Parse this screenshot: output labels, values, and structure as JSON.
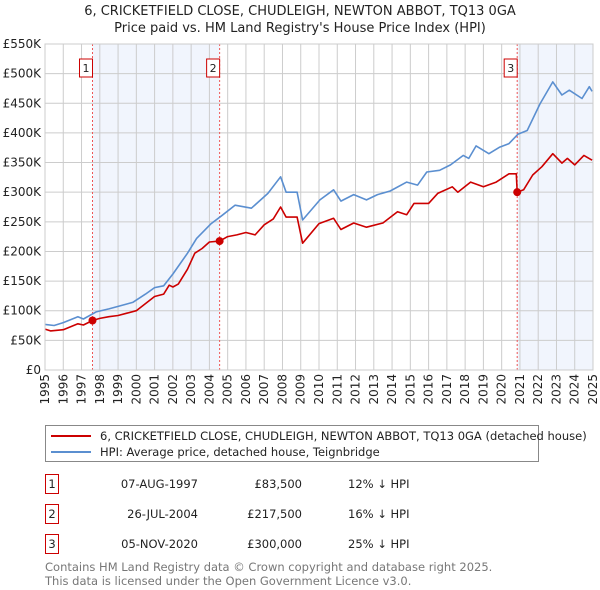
{
  "chart_data": {
    "type": "line",
    "title": "6, CRICKETFIELD CLOSE, CHUDLEIGH, NEWTON ABBOT, TQ13 0GA",
    "subtitle": "Price paid vs. HM Land Registry's House Price Index (HPI)",
    "xlim": [
      1995,
      2025
    ],
    "ylim": [
      0,
      550000
    ],
    "x_ticks": [
      "1995",
      "1996",
      "1997",
      "1998",
      "1999",
      "2000",
      "2001",
      "2002",
      "2003",
      "2004",
      "2005",
      "2006",
      "2007",
      "2008",
      "2009",
      "2010",
      "2011",
      "2012",
      "2013",
      "2014",
      "2015",
      "2016",
      "2017",
      "2018",
      "2019",
      "2020",
      "2021",
      "2022",
      "2023",
      "2024",
      "2025"
    ],
    "y_ticks": [
      {
        "v": 0,
        "label": "£0"
      },
      {
        "v": 50000,
        "label": "£50K"
      },
      {
        "v": 100000,
        "label": "£100K"
      },
      {
        "v": 150000,
        "label": "£150K"
      },
      {
        "v": 200000,
        "label": "£200K"
      },
      {
        "v": 250000,
        "label": "£250K"
      },
      {
        "v": 300000,
        "label": "£300K"
      },
      {
        "v": 350000,
        "label": "£350K"
      },
      {
        "v": 400000,
        "label": "£400K"
      },
      {
        "v": 450000,
        "label": "£450K"
      },
      {
        "v": 500000,
        "label": "£500K"
      },
      {
        "v": 550000,
        "label": "£550K"
      }
    ],
    "grid": true,
    "shaded_ranges": [
      [
        1997.6,
        2004.56
      ],
      [
        2020.85,
        2025
      ]
    ],
    "series": [
      {
        "name": "6, CRICKETFIELD CLOSE, CHUDLEIGH, NEWTON ABBOT, TQ13 0GA (detached house)",
        "color": "#cc0000",
        "x": [
          1995,
          1995.3,
          1996,
          1996.8,
          1997.1,
          1997.6,
          1998,
          1998.5,
          1999,
          2000,
          2001,
          2001.5,
          2001.8,
          2002,
          2002.3,
          2002.8,
          2003.2,
          2003.6,
          2004,
          2004.56,
          2005,
          2005.5,
          2006,
          2006.5,
          2007,
          2007.5,
          2007.9,
          2008.2,
          2008.8,
          2009.1,
          2010,
          2010.8,
          2011.2,
          2011.9,
          2012.6,
          2013.5,
          2014.3,
          2014.8,
          2015.2,
          2016,
          2016.5,
          2017.3,
          2017.6,
          2018.3,
          2019,
          2019.7,
          2020.4,
          2020.8,
          2020.85,
          2021.2,
          2021.7,
          2022.2,
          2022.8,
          2023.3,
          2023.6,
          2024,
          2024.5,
          2024.95
        ],
        "y": [
          69000,
          66000,
          68000,
          78000,
          76000,
          83500,
          87000,
          90000,
          92000,
          100000,
          124000,
          128000,
          143000,
          140000,
          145000,
          170000,
          197000,
          205000,
          216000,
          217500,
          225000,
          228000,
          232000,
          228000,
          245000,
          255000,
          275000,
          258000,
          258000,
          214000,
          247000,
          256000,
          237000,
          248000,
          241000,
          248000,
          267000,
          262000,
          281000,
          281000,
          298000,
          309000,
          300000,
          317000,
          309000,
          317000,
          331000,
          331000,
          300000,
          304000,
          329000,
          343000,
          365000,
          349000,
          357000,
          346000,
          362000,
          354000
        ]
      },
      {
        "name": "HPI: Average price, detached house, Teignbridge",
        "color": "#5b8fd0",
        "x": [
          1995,
          1995.5,
          1996,
          1996.8,
          1997.1,
          1997.8,
          1998.5,
          1999.8,
          2000.5,
          2001,
          2001.5,
          2002,
          2002.8,
          2003.3,
          2004.1,
          2004.7,
          2005.4,
          2006.3,
          2007.2,
          2007.9,
          2008.2,
          2008.8,
          2009.1,
          2010.05,
          2010.8,
          2011.2,
          2011.9,
          2012.6,
          2013.2,
          2013.9,
          2014.8,
          2015.4,
          2015.9,
          2016.6,
          2017.2,
          2017.9,
          2018.2,
          2018.6,
          2019.3,
          2019.9,
          2020.4,
          2020.9,
          2021.4,
          2022.1,
          2022.8,
          2023.3,
          2023.7,
          2024.4,
          2024.8,
          2024.95
        ],
        "y": [
          77000,
          75000,
          80000,
          90000,
          86000,
          98000,
          103000,
          114000,
          128000,
          139000,
          142000,
          162000,
          197000,
          222000,
          247000,
          261000,
          278000,
          273000,
          298000,
          326000,
          300000,
          300000,
          253000,
          287000,
          304000,
          285000,
          296000,
          287000,
          296000,
          302000,
          317000,
          312000,
          334000,
          337000,
          346000,
          362000,
          357000,
          378000,
          365000,
          376000,
          382000,
          398000,
          404000,
          449000,
          486000,
          464000,
          472000,
          458000,
          478000,
          470000
        ]
      }
    ],
    "sales": [
      {
        "id": "1",
        "x": 1997.6,
        "price": 83500,
        "date": "07-AUG-1997",
        "price_label": "£83,500",
        "hpi": "12% ↓ HPI"
      },
      {
        "id": "2",
        "x": 2004.56,
        "price": 217500,
        "date": "26-JUL-2004",
        "price_label": "£217,500",
        "hpi": "16% ↓ HPI"
      },
      {
        "id": "3",
        "x": 2020.85,
        "price": 300000,
        "date": "05-NOV-2020",
        "price_label": "£300,000",
        "hpi": "25% ↓ HPI"
      }
    ],
    "legend": "below"
  },
  "footer": {
    "line1": "Contains HM Land Registry data © Crown copyright and database right 2025.",
    "line2": "This data is licensed under the Open Government Licence v3.0."
  }
}
